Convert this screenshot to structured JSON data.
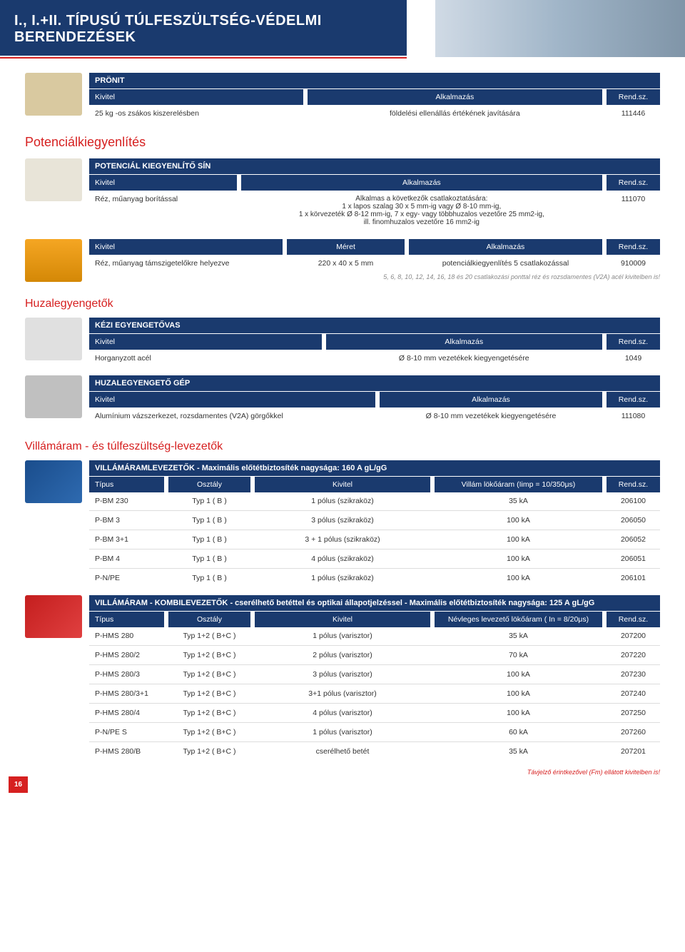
{
  "colors": {
    "navy": "#1a3a6e",
    "red": "#d62020",
    "grey": "#888"
  },
  "page_number": "16",
  "header": {
    "line1": "I., I.+II. TÍPUSÚ TÚLFESZÜLTSÉG-VÉDELMI",
    "line2": "BERENDEZÉSEK"
  },
  "pronit": {
    "title": "PRÖNIT",
    "head": [
      "Kivitel",
      "Alkalmazás",
      "Rend.sz."
    ],
    "row": [
      "25 kg -os zsákos kiszerelésben",
      "földelési ellenállás értékének javítására",
      "111446"
    ]
  },
  "pot_title": "Potenciálkiegyenlítés",
  "potsin": {
    "title": "POTENCIÁL KIEGYENLÍTŐ SÍN",
    "head": [
      "Kivitel",
      "Alkalmazás",
      "Rend.sz."
    ],
    "row": {
      "kivitel": "Réz, műanyag borítással",
      "alk": "Alkalmas a következők csatlakoztatására:\n1 x lapos szalag 30 x 5 mm-ig vagy Ø 8-10 mm-ig,\n1 x körvezeték Ø 8-12 mm-ig, 7 x egy- vagy többhuzalos vezetőre 25 mm2-ig,\nill. finomhuzalos vezetőre 16 mm2-ig",
      "rsz": "111070"
    }
  },
  "busbar": {
    "head": [
      "Kivitel",
      "Méret",
      "Alkalmazás",
      "Rend.sz."
    ],
    "row": [
      "Réz, műanyag támszigetelőkre helyezve",
      "220 x 40 x 5 mm",
      "potenciálkiegyenlítés 5 csatlakozással",
      "910009"
    ],
    "note": "5, 6, 8, 10, 12, 14, 16, 18 és 20 csatlakozási ponttal réz és rozsdamentes (V2A) acél kivitelben is!"
  },
  "huzal_title": "Huzalegyengetők",
  "kezi": {
    "title": "KÉZI EGYENGETŐVAS",
    "head": [
      "Kivitel",
      "Alkalmazás",
      "Rend.sz."
    ],
    "row": [
      "Horganyzott acél",
      "Ø 8-10 mm vezetékek kiegyengetésére",
      "1049"
    ]
  },
  "gep": {
    "title": "HUZALEGYENGETŐ GÉP",
    "head": [
      "Kivitel",
      "Alkalmazás",
      "Rend.sz."
    ],
    "row": [
      "Alumínium vázszerkezet, rozsdamentes (V2A) görgőkkel",
      "Ø 8-10 mm vezetékek kiegyengetésére",
      "111080"
    ]
  },
  "villam_title": "Villámáram - és túlfeszültség-levezetők",
  "villtbl": {
    "title": "VILLÁMÁRAMLEVEZETŐK",
    "sub": " - Maximális előtétbiztosíték nagysága: 160 A gL/gG",
    "head": [
      "Típus",
      "Osztály",
      "Kivitel",
      "Villám lökőáram (Iimp = 10/350μs)",
      "Rend.sz."
    ],
    "rows": [
      [
        "P-BM 230",
        "Typ 1 ( B )",
        "1 pólus (szikraköz)",
        "35 kA",
        "206100"
      ],
      [
        "P-BM 3",
        "Typ 1 ( B )",
        "3 pólus (szikraköz)",
        "100 kA",
        "206050"
      ],
      [
        "P-BM 3+1",
        "Typ 1 ( B )",
        "3 + 1 pólus (szikraköz)",
        "100 kA",
        "206052"
      ],
      [
        "P-BM 4",
        "Typ 1 ( B )",
        "4 pólus (szikraköz)",
        "100 kA",
        "206051"
      ],
      [
        "P-N/PE",
        "Typ 1 ( B )",
        "1 pólus (szikraköz)",
        "100 kA",
        "206101"
      ]
    ]
  },
  "kombitbl": {
    "title": "VILLÁMÁRAM - KOMBILEVEZETŐK",
    "sub": " - cserélhető betéttel és optikai állapotjelzéssel - Maximális előtétbiztosíték nagysága: 125 A gL/gG",
    "head": [
      "Típus",
      "Osztály",
      "Kivitel",
      "Névleges levezető lökőáram ( In = 8/20μs)",
      "Rend.sz."
    ],
    "rows": [
      [
        "P-HMS 280",
        "Typ 1+2 ( B+C )",
        "1 pólus (varisztor)",
        "35 kA",
        "207200"
      ],
      [
        "P-HMS 280/2",
        "Typ 1+2 ( B+C )",
        "2 pólus (varisztor)",
        "70 kA",
        "207220"
      ],
      [
        "P-HMS 280/3",
        "Typ 1+2 ( B+C )",
        "3 pólus (varisztor)",
        "100 kA",
        "207230"
      ],
      [
        "P-HMS 280/3+1",
        "Typ 1+2 ( B+C )",
        "3+1 pólus (varisztor)",
        "100 kA",
        "207240"
      ],
      [
        "P-HMS 280/4",
        "Typ 1+2 ( B+C )",
        "4 pólus (varisztor)",
        "100 kA",
        "207250"
      ],
      [
        "P-N/PE S",
        "Typ 1+2 ( B+C )",
        "1 pólus (varisztor)",
        "60 kA",
        "207260"
      ],
      [
        "P-HMS 280/B",
        "Typ 1+2 ( B+C )",
        "cserélhető betét",
        "35 kA",
        "207201"
      ]
    ]
  },
  "foot": "Távjelző érintkezővel (Fm) ellátott kivitelben is!"
}
